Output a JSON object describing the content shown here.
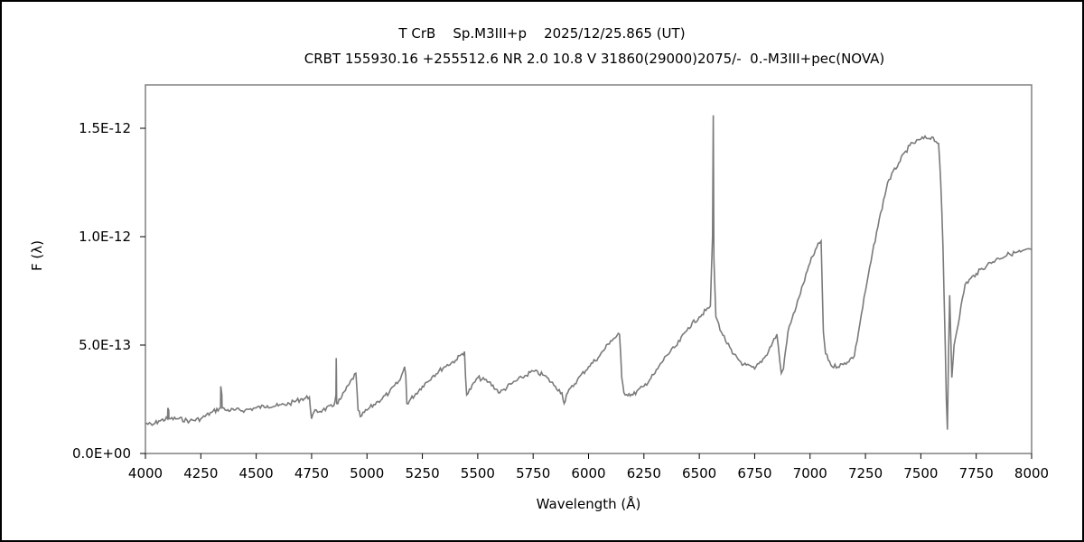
{
  "chart_data": {
    "type": "line",
    "title": "T CrB    Sp.M3III+p    2025/12/25.865 (UT)",
    "subtitle": "CRBT 155930.16 +255512.6 NR 2.0 10.8 V 31860(29000)2075/-  0.-M3III+pec(NOVA)",
    "xlabel": "Wavelength (Å)",
    "ylabel": "F (λ)",
    "xlim": [
      4000,
      8000
    ],
    "ylim": [
      0,
      1.7e-12
    ],
    "x_ticks": [
      4000,
      4250,
      4500,
      4750,
      5000,
      5250,
      5500,
      5750,
      6000,
      6250,
      6500,
      6750,
      7000,
      7250,
      7500,
      7750,
      8000
    ],
    "x_tick_labels": [
      "4000",
      "4250",
      "4500",
      "4750",
      "5000",
      "5250",
      "5500",
      "5750",
      "6000",
      "6250",
      "6500",
      "6750",
      "7000",
      "7250",
      "7500",
      "7750",
      "8000"
    ],
    "y_ticks": [
      0,
      5e-13,
      1e-12,
      1.5e-12
    ],
    "y_tick_labels": [
      "0.0E+00",
      "5.0E-13",
      "1.0E-12",
      "1.5E-12"
    ],
    "line_color": "#7a7a7a",
    "series": [
      {
        "x": [
          4000,
          4030,
          4060,
          4100,
          4101,
          4105,
          4106,
          4150,
          4200,
          4250,
          4300,
          4339,
          4340,
          4345,
          4346,
          4360,
          4400,
          4450,
          4500,
          4550,
          4600,
          4650,
          4700,
          4740,
          4750,
          4760,
          4800,
          4850,
          4860,
          4861,
          4862,
          4863,
          4880,
          4920,
          4950,
          4960,
          4970,
          5000,
          5050,
          5100,
          5150,
          5170,
          5175,
          5180,
          5250,
          5300,
          5350,
          5400,
          5430,
          5440,
          5445,
          5450,
          5500,
          5550,
          5600,
          5650,
          5700,
          5750,
          5800,
          5850,
          5880,
          5890,
          5895,
          5900,
          5950,
          6000,
          6050,
          6100,
          6140,
          6150,
          6160,
          6200,
          6250,
          6300,
          6350,
          6400,
          6450,
          6500,
          6530,
          6550,
          6560,
          6563,
          6566,
          6575,
          6600,
          6650,
          6700,
          6750,
          6800,
          6850,
          6870,
          6880,
          6885,
          6900,
          6950,
          7000,
          7030,
          7050,
          7060,
          7070,
          7100,
          7150,
          7200,
          7250,
          7300,
          7350,
          7400,
          7450,
          7500,
          7550,
          7580,
          7590,
          7600,
          7610,
          7615,
          7620,
          7625,
          7630,
          7640,
          7650,
          7700,
          7750,
          7800,
          7850,
          7900,
          7950,
          8000
        ],
        "y": [
          1.4e-13,
          1.3e-13,
          1.5e-13,
          1.6e-13,
          2.1e-13,
          2e-13,
          1.6e-13,
          1.6e-13,
          1.5e-13,
          1.6e-13,
          1.9e-13,
          2.1e-13,
          3.1e-13,
          2.7e-13,
          2.1e-13,
          2e-13,
          2e-13,
          2e-13,
          2.1e-13,
          2.2e-13,
          2.2e-13,
          2.3e-13,
          2.5e-13,
          2.6e-13,
          1.6e-13,
          1.9e-13,
          2e-13,
          2.2e-13,
          2.7e-13,
          4.4e-13,
          3.8e-13,
          2.3e-13,
          2.5e-13,
          3.2e-13,
          3.7e-13,
          2e-13,
          1.7e-13,
          2e-13,
          2.4e-13,
          2.8e-13,
          3.4e-13,
          4e-13,
          3.6e-13,
          2.3e-13,
          3.1e-13,
          3.6e-13,
          4e-13,
          4.3e-13,
          4.6e-13,
          4.7e-13,
          3.5e-13,
          2.7e-13,
          3.5e-13,
          3.3e-13,
          2.8e-13,
          3.2e-13,
          3.5e-13,
          3.8e-13,
          3.6e-13,
          3.1e-13,
          2.8e-13,
          2.3e-13,
          2.4e-13,
          2.7e-13,
          3.4e-13,
          4e-13,
          4.5e-13,
          5.2e-13,
          5.5e-13,
          3.5e-13,
          2.8e-13,
          2.7e-13,
          3.1e-13,
          3.7e-13,
          4.5e-13,
          5e-13,
          5.8e-13,
          6.3e-13,
          6.6e-13,
          6.8e-13,
          1e-12,
          1.56e-12,
          9e-13,
          6.3e-13,
          5.6e-13,
          4.6e-13,
          4.1e-13,
          3.9e-13,
          4.5e-13,
          5.5e-13,
          3.7e-13,
          3.9e-13,
          4.4e-13,
          5.6e-13,
          7.2e-13,
          8.8e-13,
          9.5e-13,
          9.8e-13,
          5.6e-13,
          4.6e-13,
          4e-13,
          4.1e-13,
          4.5e-13,
          7.5e-13,
          1.02e-12,
          1.25e-12,
          1.34e-12,
          1.42e-12,
          1.45e-12,
          1.46e-12,
          1.43e-12,
          1.25e-12,
          9.5e-13,
          5e-13,
          2.5e-13,
          1.1e-13,
          4.5e-13,
          7.3e-13,
          3.5e-13,
          5e-13,
          7.8e-13,
          8.3e-13,
          8.7e-13,
          9e-13,
          9.2e-13,
          9.3e-13,
          9.4e-13
        ]
      }
    ]
  }
}
